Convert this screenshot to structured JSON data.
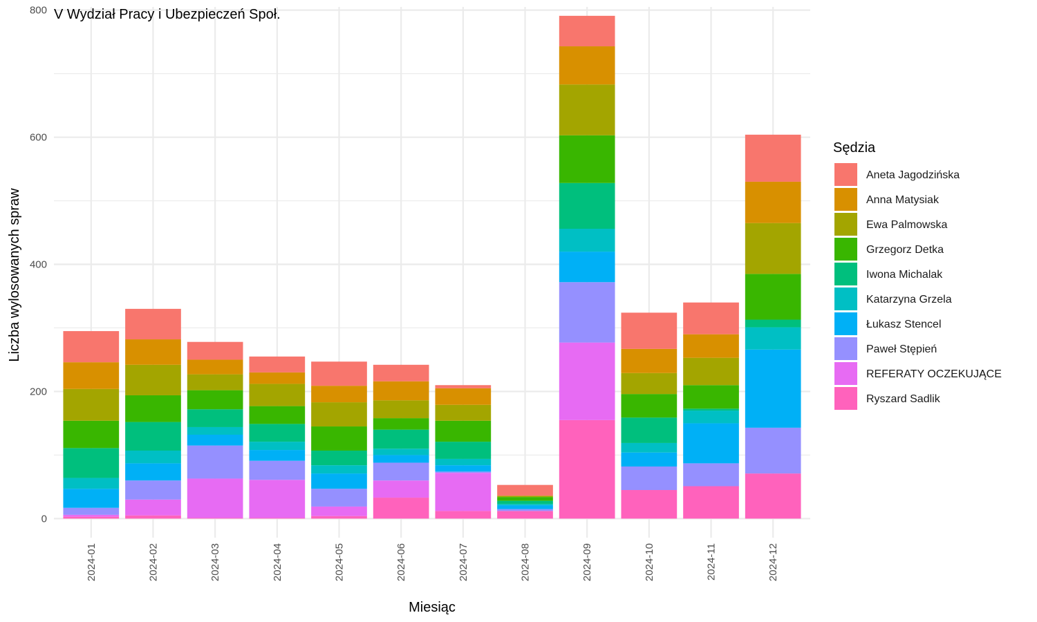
{
  "chart_data": {
    "type": "bar",
    "stacked": true,
    "title": "V Wydział Pracy i Ubezpieczeń Społ.",
    "xlabel": "Miesiąc",
    "ylabel": "Liczba wylosowanych spraw",
    "ylim": [
      -30,
      805
    ],
    "yticks": [
      0,
      200,
      400,
      600,
      800
    ],
    "grid": true,
    "legend_title": "Sędzia",
    "legend_position": "right",
    "categories": [
      "2024-01",
      "2024-02",
      "2024-03",
      "2024-04",
      "2024-05",
      "2024-06",
      "2024-07",
      "2024-08",
      "2024-09",
      "2024-10",
      "2024-11",
      "2024-12"
    ],
    "series": [
      {
        "name": "Aneta Jagodzińska",
        "color": "#F8766D",
        "values": [
          49,
          48,
          28,
          25,
          38,
          26,
          5,
          17,
          48,
          57,
          50,
          74
        ]
      },
      {
        "name": "Anna Matysiak",
        "color": "#D89000",
        "values": [
          42,
          40,
          23,
          18,
          26,
          30,
          26,
          0,
          60,
          38,
          37,
          65
        ]
      },
      {
        "name": "Ewa Palmowska",
        "color": "#A3A500",
        "values": [
          50,
          48,
          25,
          35,
          38,
          28,
          25,
          2,
          80,
          33,
          43,
          80
        ]
      },
      {
        "name": "Grzegorz Detka",
        "color": "#39B600",
        "values": [
          43,
          42,
          30,
          28,
          38,
          18,
          33,
          6,
          75,
          37,
          37,
          72
        ]
      },
      {
        "name": "Iwona Michalak",
        "color": "#00BF7D",
        "values": [
          47,
          45,
          28,
          28,
          23,
          30,
          27,
          5,
          72,
          40,
          3,
          12
        ]
      },
      {
        "name": "Katarzyna Grzela",
        "color": "#00BFC4",
        "values": [
          17,
          20,
          12,
          13,
          13,
          10,
          10,
          2,
          36,
          15,
          20,
          35
        ]
      },
      {
        "name": "Łukasz Stencel",
        "color": "#00B0F6",
        "values": [
          30,
          27,
          17,
          17,
          24,
          12,
          10,
          6,
          48,
          22,
          63,
          123
        ]
      },
      {
        "name": "Paweł Stępień",
        "color": "#9590FF",
        "values": [
          11,
          30,
          52,
          30,
          28,
          28,
          2,
          3,
          95,
          37,
          36,
          72
        ]
      },
      {
        "name": "REFERATY OCZEKUJĄCE",
        "color": "#E76BF3",
        "values": [
          3,
          25,
          62,
          60,
          15,
          27,
          60,
          0,
          122,
          0,
          0,
          0
        ]
      },
      {
        "name": "Ryszard Sadlik",
        "color": "#FF62BC",
        "values": [
          3,
          5,
          1,
          1,
          4,
          33,
          12,
          12,
          155,
          45,
          51,
          71
        ]
      }
    ]
  }
}
